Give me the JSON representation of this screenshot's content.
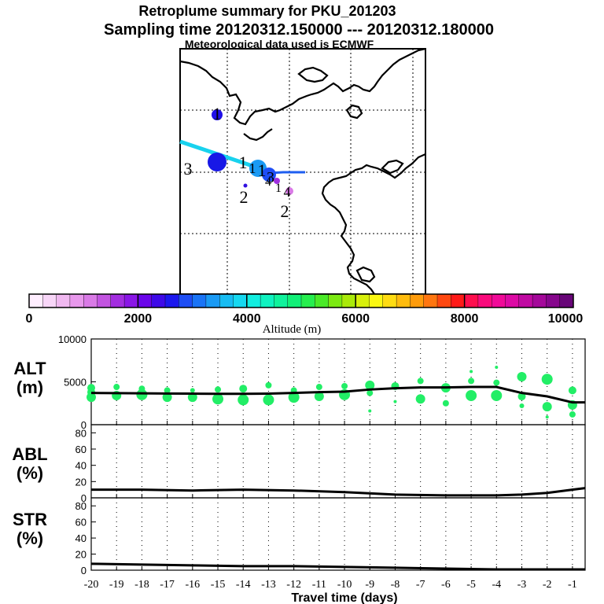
{
  "title_line1": "Retroplume summary for PKU_201203",
  "title_line2": "Sampling time   20120312.150000 --- 20120312.180000",
  "title_line3": "Meteorological data used is ECMWF",
  "map": {
    "plume_labels": [
      "1",
      "1",
      "1",
      "2",
      "3",
      "4",
      "3",
      "2",
      "1",
      "1",
      "4"
    ]
  },
  "colorbar": {
    "label": "Altitude (m)",
    "tick_labels": [
      "0",
      "2000",
      "4000",
      "6000",
      "8000",
      "10000"
    ],
    "colors": [
      "#ffeeff",
      "#f8d6f8",
      "#f0b8f0",
      "#e898ec",
      "#d97ae6",
      "#c254e0",
      "#a32ee0",
      "#8a16e6",
      "#6a06ea",
      "#3e0ae8",
      "#1c18ee",
      "#1e4ef5",
      "#1a74f6",
      "#1a9af4",
      "#18bcf2",
      "#16d8f0",
      "#12eee0",
      "#10f2c0",
      "#10f29c",
      "#12f078",
      "#26ee4e",
      "#4aea28",
      "#7cea12",
      "#aaea0a",
      "#d8f00c",
      "#fbf812",
      "#ffdc12",
      "#ffbc0e",
      "#ff9c0c",
      "#ff7610",
      "#ff4810",
      "#ff1a18",
      "#fe0e4e",
      "#fa0a7c",
      "#f00a98",
      "#dc0aa4",
      "#c00aa2",
      "#a4089a",
      "#86068c",
      "#680678"
    ]
  },
  "chart_data": [
    {
      "type": "scatter",
      "name": "ALT",
      "ylabel": "ALT\n(m)",
      "ylabel_line1": "ALT",
      "ylabel_line2": "(m)",
      "ylim": [
        0,
        10000
      ],
      "y_ticks": [
        "10000",
        "5000",
        "0"
      ],
      "xlim": [
        -20,
        -0.5
      ],
      "color": "#22ee66",
      "median_line": {
        "x": [
          -20,
          -19,
          -18,
          -17,
          -16,
          -15,
          -14,
          -13,
          -12,
          -11,
          -10,
          -9,
          -8,
          -7,
          -6,
          -5,
          -4,
          -3,
          -2,
          -1,
          -0.5
        ],
        "y": [
          3700,
          3680,
          3660,
          3640,
          3620,
          3600,
          3600,
          3620,
          3700,
          3800,
          3850,
          4100,
          4250,
          4350,
          4350,
          4400,
          4400,
          3700,
          3300,
          2600,
          2600
        ]
      },
      "points": [
        {
          "x": -20,
          "y": 4300,
          "s": 5
        },
        {
          "x": -20,
          "y": 3200,
          "s": 6
        },
        {
          "x": -20,
          "y": 3800,
          "s": 5
        },
        {
          "x": -19,
          "y": 3400,
          "s": 6
        },
        {
          "x": -19,
          "y": 4400,
          "s": 4
        },
        {
          "x": -18,
          "y": 3500,
          "s": 7
        },
        {
          "x": -18,
          "y": 4200,
          "s": 4
        },
        {
          "x": -17,
          "y": 3200,
          "s": 6
        },
        {
          "x": -17,
          "y": 4000,
          "s": 4
        },
        {
          "x": -16,
          "y": 3200,
          "s": 6
        },
        {
          "x": -16,
          "y": 4000,
          "s": 3
        },
        {
          "x": -15,
          "y": 3000,
          "s": 7
        },
        {
          "x": -15,
          "y": 4100,
          "s": 4
        },
        {
          "x": -14,
          "y": 2900,
          "s": 7
        },
        {
          "x": -14,
          "y": 4200,
          "s": 5
        },
        {
          "x": -13,
          "y": 2900,
          "s": 7
        },
        {
          "x": -13,
          "y": 4600,
          "s": 4
        },
        {
          "x": -12,
          "y": 3200,
          "s": 7
        },
        {
          "x": -12,
          "y": 4000,
          "s": 4
        },
        {
          "x": -11,
          "y": 3300,
          "s": 6
        },
        {
          "x": -11,
          "y": 4400,
          "s": 4
        },
        {
          "x": -10,
          "y": 3500,
          "s": 7
        },
        {
          "x": -10,
          "y": 4500,
          "s": 4
        },
        {
          "x": -9,
          "y": 4600,
          "s": 6
        },
        {
          "x": -9,
          "y": 3700,
          "s": 4
        },
        {
          "x": -9,
          "y": 1600,
          "s": 2
        },
        {
          "x": -8,
          "y": 4500,
          "s": 5
        },
        {
          "x": -8,
          "y": 2700,
          "s": 2
        },
        {
          "x": -7,
          "y": 3000,
          "s": 6
        },
        {
          "x": -7,
          "y": 5100,
          "s": 4
        },
        {
          "x": -6,
          "y": 2500,
          "s": 4
        },
        {
          "x": -6,
          "y": 4300,
          "s": 6
        },
        {
          "x": -5,
          "y": 3400,
          "s": 7
        },
        {
          "x": -5,
          "y": 5100,
          "s": 4
        },
        {
          "x": -5,
          "y": 6200,
          "s": 2
        },
        {
          "x": -4,
          "y": 3400,
          "s": 7
        },
        {
          "x": -4,
          "y": 4900,
          "s": 4
        },
        {
          "x": -4,
          "y": 6700,
          "s": 2
        },
        {
          "x": -3,
          "y": 5600,
          "s": 6
        },
        {
          "x": -3,
          "y": 3300,
          "s": 5
        },
        {
          "x": -3,
          "y": 2200,
          "s": 3
        },
        {
          "x": -2,
          "y": 5300,
          "s": 7
        },
        {
          "x": -2,
          "y": 2100,
          "s": 6
        },
        {
          "x": -2,
          "y": 900,
          "s": 2
        },
        {
          "x": -1,
          "y": 4000,
          "s": 5
        },
        {
          "x": -1,
          "y": 2300,
          "s": 6
        },
        {
          "x": -1,
          "y": 1200,
          "s": 4
        }
      ]
    },
    {
      "type": "line",
      "name": "ABL",
      "ylabel": "ABL\n(%)",
      "ylabel_line1": "ABL",
      "ylabel_line2": "(%)",
      "ylim": [
        0,
        90
      ],
      "y_ticks": [
        "80",
        "60",
        "40",
        "20",
        "0"
      ],
      "xlim": [
        -20,
        -0.5
      ],
      "series": [
        {
          "name": "ABL",
          "x": [
            -20,
            -18,
            -16,
            -14,
            -12,
            -10,
            -8,
            -6,
            -4,
            -3,
            -2,
            -1,
            -0.5
          ],
          "y": [
            10,
            10,
            9,
            10,
            9,
            7,
            4,
            3,
            3,
            4,
            6,
            10,
            12
          ]
        }
      ]
    },
    {
      "type": "line",
      "name": "STR",
      "ylabel": "STR\n(%)",
      "ylabel_line1": "STR",
      "ylabel_line2": "(%)",
      "ylim": [
        0,
        90
      ],
      "y_ticks": [
        "80",
        "60",
        "40",
        "20",
        "0"
      ],
      "xlim": [
        -20,
        -0.5
      ],
      "xlabel": "Travel time (days)",
      "x_ticks": [
        "-20",
        "-19",
        "-18",
        "-17",
        "-16",
        "-15",
        "-14",
        "-13",
        "-12",
        "-11",
        "-10",
        "-9",
        "-8",
        "-7",
        "-6",
        "-5",
        "-4",
        "-3",
        "-2",
        "-1"
      ],
      "series": [
        {
          "name": "STR",
          "x": [
            -20,
            -18,
            -16,
            -14,
            -12,
            -10,
            -8,
            -6,
            -4,
            -2,
            -0.5
          ],
          "y": [
            8,
            7,
            6,
            5,
            5,
            4,
            3,
            2,
            1,
            1,
            1
          ]
        }
      ]
    }
  ]
}
